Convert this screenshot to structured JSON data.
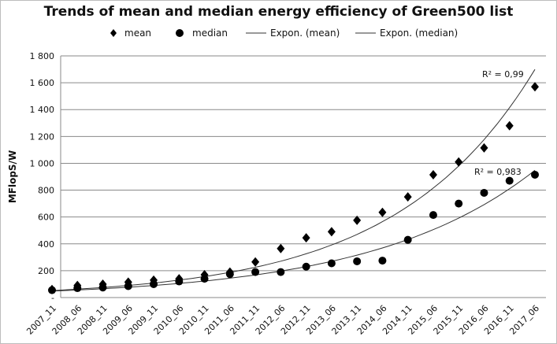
{
  "chart_data": {
    "type": "scatter",
    "title": "Trends of mean and median energy efficiency of Green500 list",
    "xlabel": "",
    "ylabel": "MFlopS/W",
    "ylim": [
      0,
      1800
    ],
    "yticks": [
      0,
      200,
      400,
      600,
      800,
      1000,
      1200,
      1400,
      1600,
      1800
    ],
    "ytick_labels": [
      "-",
      "200",
      "400",
      "600",
      "800",
      "1 000",
      "1 200",
      "1 400",
      "1 600",
      "1 800"
    ],
    "grid": true,
    "legend_position": "top",
    "categories": [
      "2007_11",
      "2008_06",
      "2008_11",
      "2009_06",
      "2009_11",
      "2010_06",
      "2010_11",
      "2011_06",
      "2011_11",
      "2012_06",
      "2012_11",
      "2013_06",
      "2013_11",
      "2014_06",
      "2014_11",
      "2015_06",
      "2015_11",
      "2016_06",
      "2016_11",
      "2017_06"
    ],
    "series": [
      {
        "name": "mean",
        "marker": "diamond",
        "values": [
          60,
          90,
          100,
          115,
          130,
          140,
          170,
          190,
          265,
          365,
          445,
          490,
          575,
          635,
          750,
          915,
          1010,
          1115,
          1280,
          1570
        ]
      },
      {
        "name": "median",
        "marker": "circle",
        "values": [
          55,
          70,
          75,
          85,
          100,
          120,
          140,
          175,
          190,
          190,
          230,
          255,
          270,
          275,
          430,
          615,
          700,
          780,
          870,
          915
        ]
      }
    ],
    "trendlines": [
      {
        "name": "Expon. (mean)",
        "a": 52,
        "b": 0.1835,
        "r2_label": "R² = 0,99"
      },
      {
        "name": "Expon. (median)",
        "a": 48,
        "b": 0.157,
        "r2_label": "R² = 0,983"
      }
    ]
  }
}
